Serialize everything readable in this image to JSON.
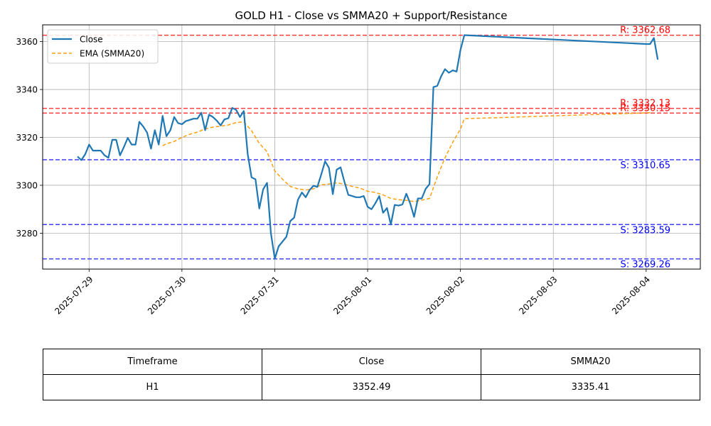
{
  "chart_data": {
    "type": "line",
    "title": "GOLD H1 - Close vs SMMA20 + Support/Resistance",
    "xlabel": "",
    "ylabel": "",
    "x_range": [
      "2025-07-28 12:00",
      "2025-08-04 14:00"
    ],
    "ylim": [
      3265,
      3367
    ],
    "x_ticks": [
      "2025-07-29",
      "2025-07-30",
      "2025-07-31",
      "2025-08-01",
      "2025-08-02",
      "2025-08-03",
      "2025-08-04"
    ],
    "y_ticks": [
      3280,
      3300,
      3320,
      3340,
      3360
    ],
    "grid": true,
    "legend_position": "top-left",
    "series": [
      {
        "name": "Close",
        "color": "#1f77b4",
        "style": "solid",
        "points": [
          [
            "2025-07-28 21:00",
            3312.0
          ],
          [
            "2025-07-28 22:00",
            3310.5
          ],
          [
            "2025-07-28 23:00",
            3313.0
          ],
          [
            "2025-07-29 00:00",
            3317.0
          ],
          [
            "2025-07-29 01:00",
            3314.5
          ],
          [
            "2025-07-29 02:00",
            3314.5
          ],
          [
            "2025-07-29 03:00",
            3314.5
          ],
          [
            "2025-07-29 04:00",
            3312.5
          ],
          [
            "2025-07-29 05:00",
            3311.5
          ],
          [
            "2025-07-29 06:00",
            3319.0
          ],
          [
            "2025-07-29 07:00",
            3319.0
          ],
          [
            "2025-07-29 08:00",
            3312.5
          ],
          [
            "2025-07-29 09:00",
            3316.0
          ],
          [
            "2025-07-29 10:00",
            3319.8
          ],
          [
            "2025-07-29 11:00",
            3317.0
          ],
          [
            "2025-07-29 12:00",
            3317.0
          ],
          [
            "2025-07-29 13:00",
            3326.5
          ],
          [
            "2025-07-29 14:00",
            3324.5
          ],
          [
            "2025-07-29 15:00",
            3322.0
          ],
          [
            "2025-07-29 16:00",
            3315.3
          ],
          [
            "2025-07-29 17:00",
            3323.0
          ],
          [
            "2025-07-29 18:00",
            3317.0
          ],
          [
            "2025-07-29 19:00",
            3329.0
          ],
          [
            "2025-07-29 20:00",
            3320.5
          ],
          [
            "2025-07-29 21:00",
            3323.0
          ],
          [
            "2025-07-29 22:00",
            3328.5
          ],
          [
            "2025-07-29 23:00",
            3326.0
          ],
          [
            "2025-07-30 00:00",
            3325.5
          ],
          [
            "2025-07-30 01:00",
            3326.8
          ],
          [
            "2025-07-30 02:00",
            3327.3
          ],
          [
            "2025-07-30 03:00",
            3327.8
          ],
          [
            "2025-07-30 04:00",
            3327.8
          ],
          [
            "2025-07-30 05:00",
            3330.3
          ],
          [
            "2025-07-30 06:00",
            3323.0
          ],
          [
            "2025-07-30 07:00",
            3329.5
          ],
          [
            "2025-07-30 08:00",
            3328.5
          ],
          [
            "2025-07-30 09:00",
            3327.0
          ],
          [
            "2025-07-30 10:00",
            3325.0
          ],
          [
            "2025-07-30 11:00",
            3327.5
          ],
          [
            "2025-07-30 12:00",
            3328.0
          ],
          [
            "2025-07-30 13:00",
            3332.3
          ],
          [
            "2025-07-30 14:00",
            3331.5
          ],
          [
            "2025-07-30 15:00",
            3328.5
          ],
          [
            "2025-07-30 16:00",
            3331.0
          ],
          [
            "2025-07-30 17:00",
            3313.0
          ],
          [
            "2025-07-30 18:00",
            3303.3
          ],
          [
            "2025-07-30 19:00",
            3302.5
          ],
          [
            "2025-07-30 20:00",
            3290.3
          ],
          [
            "2025-07-30 21:00",
            3298.3
          ],
          [
            "2025-07-30 22:00",
            3301.0
          ],
          [
            "2025-07-30 23:00",
            3280.0
          ],
          [
            "2025-07-31 00:00",
            3269.3
          ],
          [
            "2025-07-31 01:00",
            3274.5
          ],
          [
            "2025-07-31 02:00",
            3276.5
          ],
          [
            "2025-07-31 03:00",
            3278.5
          ],
          [
            "2025-07-31 04:00",
            3285.0
          ],
          [
            "2025-07-31 05:00",
            3286.5
          ],
          [
            "2025-07-31 06:00",
            3294.0
          ],
          [
            "2025-07-31 07:00",
            3297.0
          ],
          [
            "2025-07-31 08:00",
            3295.0
          ],
          [
            "2025-07-31 09:00",
            3298.0
          ],
          [
            "2025-07-31 10:00",
            3299.8
          ],
          [
            "2025-07-31 11:00",
            3299.3
          ],
          [
            "2025-07-31 12:00",
            3304.5
          ],
          [
            "2025-07-31 13:00",
            3310.0
          ],
          [
            "2025-07-31 14:00",
            3307.3
          ],
          [
            "2025-07-31 15:00",
            3296.3
          ],
          [
            "2025-07-31 16:00",
            3306.5
          ],
          [
            "2025-07-31 17:00",
            3307.5
          ],
          [
            "2025-07-31 18:00",
            3301.5
          ],
          [
            "2025-07-31 19:00",
            3296.0
          ],
          [
            "2025-07-31 20:00",
            3295.5
          ],
          [
            "2025-07-31 21:00",
            3295.0
          ],
          [
            "2025-07-31 22:00",
            3295.0
          ],
          [
            "2025-07-31 23:00",
            3295.5
          ],
          [
            "2025-08-01 00:00",
            3291.0
          ],
          [
            "2025-08-01 01:00",
            3290.0
          ],
          [
            "2025-08-01 02:00",
            3292.5
          ],
          [
            "2025-08-01 03:00",
            3295.5
          ],
          [
            "2025-08-01 04:00",
            3288.5
          ],
          [
            "2025-08-01 05:00",
            3290.5
          ],
          [
            "2025-08-01 06:00",
            3283.6
          ],
          [
            "2025-08-01 07:00",
            3291.8
          ],
          [
            "2025-08-01 08:00",
            3291.5
          ],
          [
            "2025-08-01 09:00",
            3292.0
          ],
          [
            "2025-08-01 10:00",
            3296.5
          ],
          [
            "2025-08-01 11:00",
            3292.5
          ],
          [
            "2025-08-01 12:00",
            3286.8
          ],
          [
            "2025-08-01 13:00",
            3294.5
          ],
          [
            "2025-08-01 14:00",
            3294.5
          ],
          [
            "2025-08-01 15:00",
            3298.5
          ],
          [
            "2025-08-01 16:00",
            3300.5
          ],
          [
            "2025-08-01 17:00",
            3341.0
          ],
          [
            "2025-08-01 18:00",
            3341.5
          ],
          [
            "2025-08-01 19:00",
            3345.5
          ],
          [
            "2025-08-01 20:00",
            3348.5
          ],
          [
            "2025-08-01 21:00",
            3347.0
          ],
          [
            "2025-08-01 22:00",
            3348.0
          ],
          [
            "2025-08-01 23:00",
            3347.5
          ],
          [
            "2025-08-02 00:00",
            3356.5
          ],
          [
            "2025-08-02 01:00",
            3362.7
          ],
          [
            "2025-08-04 00:00",
            3359.0
          ],
          [
            "2025-08-04 01:00",
            3359.0
          ],
          [
            "2025-08-04 02:00",
            3361.5
          ],
          [
            "2025-08-04 03:00",
            3352.5
          ]
        ]
      },
      {
        "name": "EMA (SMMA20)",
        "color": "#ff9f0e",
        "style": "dashed",
        "points": [
          [
            "2025-07-29 19:00",
            3316.5
          ],
          [
            "2025-07-29 20:00",
            3317.3
          ],
          [
            "2025-07-29 22:00",
            3318.3
          ],
          [
            "2025-07-30 00:00",
            3320.0
          ],
          [
            "2025-07-30 02:00",
            3321.3
          ],
          [
            "2025-07-30 04:00",
            3322.2
          ],
          [
            "2025-07-30 06:00",
            3323.5
          ],
          [
            "2025-07-30 08:00",
            3324.3
          ],
          [
            "2025-07-30 10:00",
            3324.7
          ],
          [
            "2025-07-30 12:00",
            3325.2
          ],
          [
            "2025-07-30 14:00",
            3326.2
          ],
          [
            "2025-07-30 16:00",
            3326.5
          ],
          [
            "2025-07-30 18:00",
            3322.8
          ],
          [
            "2025-07-30 20:00",
            3317.5
          ],
          [
            "2025-07-30 22:00",
            3314.0
          ],
          [
            "2025-07-31 00:00",
            3306.0
          ],
          [
            "2025-07-31 02:00",
            3302.5
          ],
          [
            "2025-07-31 04:00",
            3299.5
          ],
          [
            "2025-07-31 06:00",
            3298.5
          ],
          [
            "2025-07-31 08:00",
            3298.0
          ],
          [
            "2025-07-31 10:00",
            3298.5
          ],
          [
            "2025-07-31 12:00",
            3300.2
          ],
          [
            "2025-07-31 14:00",
            3300.5
          ],
          [
            "2025-07-31 16:00",
            3301.0
          ],
          [
            "2025-07-31 18:00",
            3300.5
          ],
          [
            "2025-07-31 20:00",
            3299.5
          ],
          [
            "2025-07-31 22:00",
            3298.8
          ],
          [
            "2025-08-01 00:00",
            3297.5
          ],
          [
            "2025-08-01 02:00",
            3297.0
          ],
          [
            "2025-08-01 04:00",
            3296.0
          ],
          [
            "2025-08-01 06:00",
            3294.5
          ],
          [
            "2025-08-01 08:00",
            3294.0
          ],
          [
            "2025-08-01 10:00",
            3293.7
          ],
          [
            "2025-08-01 12:00",
            3293.2
          ],
          [
            "2025-08-01 14:00",
            3293.8
          ],
          [
            "2025-08-01 16:00",
            3294.5
          ],
          [
            "2025-08-01 18:00",
            3303.5
          ],
          [
            "2025-08-01 20:00",
            3311.5
          ],
          [
            "2025-08-01 22:00",
            3318.0
          ],
          [
            "2025-08-02 00:00",
            3323.5
          ],
          [
            "2025-08-02 01:00",
            3327.8
          ],
          [
            "2025-08-04 01:00",
            3330.3
          ]
        ]
      }
    ],
    "hlines": [
      {
        "label": "R: 3362.68",
        "value": 3362.68,
        "type": "resistance",
        "color": "#ff0000"
      },
      {
        "label": "R: 3332.13",
        "value": 3332.13,
        "type": "resistance",
        "color": "#ff0000"
      },
      {
        "label": "R: 3330.15",
        "value": 3330.15,
        "type": "resistance",
        "color": "#ff0000"
      },
      {
        "label": "S: 3310.65",
        "value": 3310.65,
        "type": "support",
        "color": "#0000ff"
      },
      {
        "label": "S: 3283.59",
        "value": 3283.59,
        "type": "support",
        "color": "#0000ff"
      },
      {
        "label": "S: 3269.26",
        "value": 3269.26,
        "type": "support",
        "color": "#0000ff"
      }
    ]
  },
  "table": {
    "headers": [
      "Timeframe",
      "Close",
      "SMMA20"
    ],
    "rows": [
      [
        "H1",
        "3352.49",
        "3335.41"
      ]
    ]
  }
}
